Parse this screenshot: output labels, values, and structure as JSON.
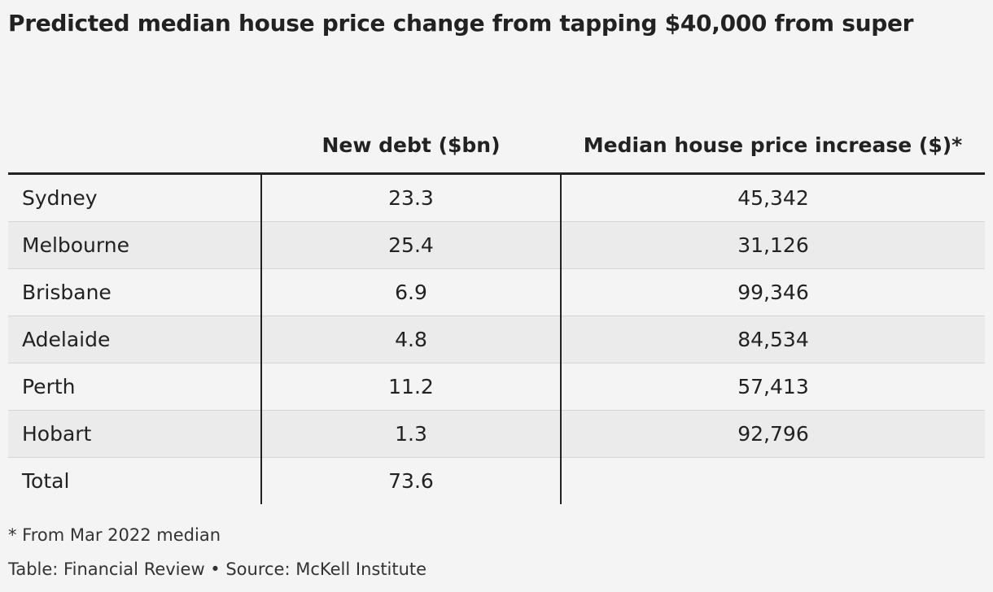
{
  "title": "Predicted median house price change from tapping $40,000 from super",
  "chart_data": {
    "type": "table",
    "columns": [
      "",
      "New debt ($bn)",
      "Median house price increase ($)*"
    ],
    "rows": [
      {
        "city": "Sydney",
        "new_debt": "23.3",
        "price_increase": "45,342"
      },
      {
        "city": "Melbourne",
        "new_debt": "25.4",
        "price_increase": "31,126"
      },
      {
        "city": "Brisbane",
        "new_debt": "6.9",
        "price_increase": "99,346"
      },
      {
        "city": "Adelaide",
        "new_debt": "4.8",
        "price_increase": "84,534"
      },
      {
        "city": "Perth",
        "new_debt": "11.2",
        "price_increase": "57,413"
      },
      {
        "city": "Hobart",
        "new_debt": "1.3",
        "price_increase": "92,796"
      },
      {
        "city": "Total",
        "new_debt": "73.6",
        "price_increase": ""
      }
    ]
  },
  "footnote": "* From Mar 2022 median",
  "source": "Table: Financial Review • Source: McKell Institute"
}
